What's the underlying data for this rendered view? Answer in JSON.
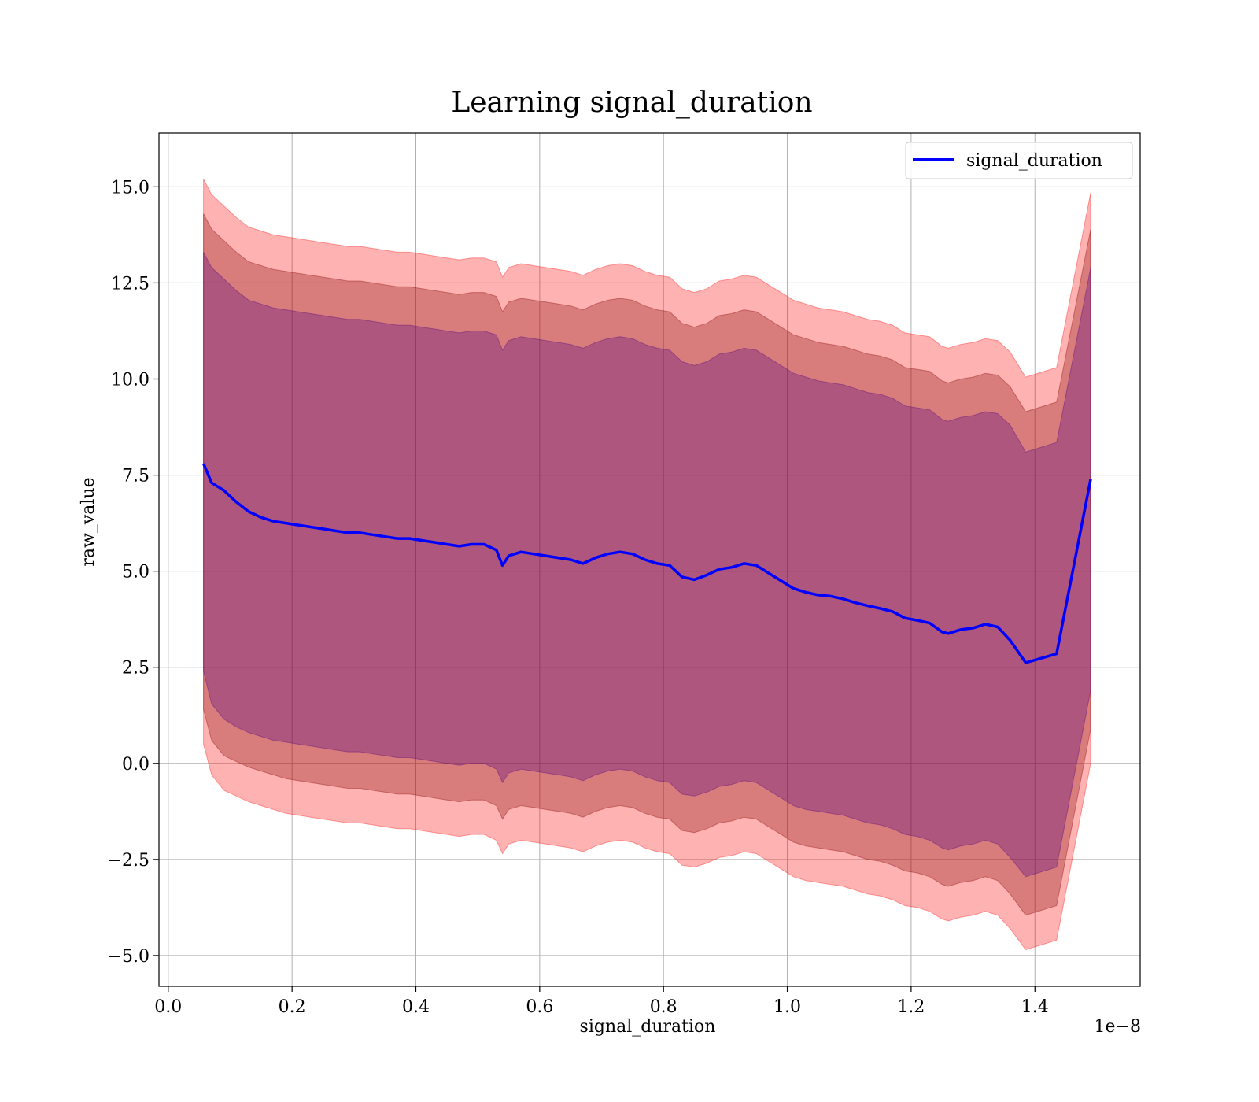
{
  "chart_data": {
    "type": "line",
    "title": "Learning signal_duration",
    "xlabel": "signal_duration",
    "ylabel": "raw_value",
    "x_offset_label": "1e−8",
    "xlim": [
      -0.015,
      1.57
    ],
    "ylim": [
      -5.8,
      16.4
    ],
    "xticks": [
      0.0,
      0.2,
      0.4,
      0.6,
      0.8,
      1.0,
      1.2,
      1.4
    ],
    "xtick_labels": [
      "0.0",
      "0.2",
      "0.4",
      "0.6",
      "0.8",
      "1.0",
      "1.2",
      "1.4"
    ],
    "yticks": [
      -5.0,
      -2.5,
      0.0,
      2.5,
      5.0,
      7.5,
      10.0,
      12.5,
      15.0
    ],
    "ytick_labels": [
      "−5.0",
      "−2.5",
      "0.0",
      "2.5",
      "5.0",
      "7.5",
      "10.0",
      "12.5",
      "15.0"
    ],
    "grid": true,
    "legend_position": "top-right",
    "series": [
      {
        "name": "signal_duration",
        "color": "#0000ff",
        "x": [
          0.057,
          0.07,
          0.09,
          0.11,
          0.13,
          0.15,
          0.17,
          0.19,
          0.21,
          0.23,
          0.25,
          0.27,
          0.29,
          0.31,
          0.33,
          0.35,
          0.37,
          0.39,
          0.41,
          0.43,
          0.45,
          0.47,
          0.49,
          0.51,
          0.53,
          0.54,
          0.55,
          0.57,
          0.59,
          0.61,
          0.63,
          0.65,
          0.67,
          0.69,
          0.71,
          0.73,
          0.75,
          0.77,
          0.79,
          0.81,
          0.83,
          0.85,
          0.87,
          0.89,
          0.91,
          0.93,
          0.95,
          0.97,
          0.99,
          1.01,
          1.03,
          1.05,
          1.07,
          1.09,
          1.11,
          1.13,
          1.15,
          1.17,
          1.19,
          1.21,
          1.23,
          1.25,
          1.26,
          1.28,
          1.3,
          1.32,
          1.34,
          1.36,
          1.385,
          1.435,
          1.49
        ],
        "values": [
          7.8,
          7.3,
          7.1,
          6.8,
          6.55,
          6.4,
          6.3,
          6.25,
          6.2,
          6.15,
          6.1,
          6.05,
          6.0,
          6.0,
          5.95,
          5.9,
          5.85,
          5.85,
          5.8,
          5.75,
          5.7,
          5.65,
          5.7,
          5.7,
          5.55,
          5.15,
          5.4,
          5.5,
          5.45,
          5.4,
          5.35,
          5.3,
          5.2,
          5.35,
          5.45,
          5.5,
          5.45,
          5.3,
          5.2,
          5.15,
          4.85,
          4.78,
          4.9,
          5.05,
          5.1,
          5.2,
          5.15,
          4.95,
          4.75,
          4.55,
          4.45,
          4.38,
          4.35,
          4.28,
          4.18,
          4.1,
          4.03,
          3.95,
          3.78,
          3.72,
          3.65,
          3.42,
          3.38,
          3.48,
          3.52,
          3.62,
          3.55,
          3.2,
          2.62,
          2.85,
          7.4
        ]
      }
    ],
    "bands": [
      {
        "color": "#ff0000",
        "opacity": 0.3,
        "lower": [
          0.5,
          -0.3,
          -0.7,
          -0.85,
          -1.0,
          -1.1,
          -1.2,
          -1.3,
          -1.35,
          -1.4,
          -1.45,
          -1.5,
          -1.55,
          -1.55,
          -1.6,
          -1.65,
          -1.7,
          -1.7,
          -1.75,
          -1.8,
          -1.85,
          -1.9,
          -1.85,
          -1.85,
          -2.0,
          -2.35,
          -2.1,
          -2.0,
          -2.05,
          -2.1,
          -2.15,
          -2.2,
          -2.3,
          -2.15,
          -2.05,
          -2.0,
          -2.05,
          -2.2,
          -2.3,
          -2.35,
          -2.65,
          -2.7,
          -2.6,
          -2.45,
          -2.4,
          -2.3,
          -2.35,
          -2.55,
          -2.75,
          -2.95,
          -3.05,
          -3.1,
          -3.15,
          -3.2,
          -3.3,
          -3.4,
          -3.45,
          -3.55,
          -3.7,
          -3.75,
          -3.85,
          -4.05,
          -4.1,
          -4.0,
          -3.95,
          -3.85,
          -3.95,
          -4.3,
          -4.85,
          -4.6,
          0.0
        ],
        "upper": [
          15.2,
          14.8,
          14.5,
          14.2,
          13.95,
          13.85,
          13.75,
          13.7,
          13.65,
          13.6,
          13.55,
          13.5,
          13.45,
          13.45,
          13.4,
          13.35,
          13.3,
          13.3,
          13.25,
          13.2,
          13.15,
          13.1,
          13.15,
          13.15,
          13.05,
          12.65,
          12.9,
          13.0,
          12.95,
          12.9,
          12.85,
          12.8,
          12.7,
          12.85,
          12.95,
          13.0,
          12.95,
          12.8,
          12.7,
          12.65,
          12.35,
          12.25,
          12.35,
          12.55,
          12.6,
          12.7,
          12.65,
          12.45,
          12.25,
          12.05,
          11.95,
          11.85,
          11.8,
          11.75,
          11.65,
          11.55,
          11.5,
          11.4,
          11.2,
          11.15,
          11.1,
          10.85,
          10.8,
          10.9,
          10.95,
          11.05,
          11.0,
          10.7,
          10.05,
          10.3,
          14.85
        ]
      },
      {
        "color": "#800000",
        "opacity": 0.3,
        "lower": [
          1.4,
          0.6,
          0.2,
          0.05,
          -0.1,
          -0.2,
          -0.3,
          -0.4,
          -0.45,
          -0.5,
          -0.55,
          -0.6,
          -0.65,
          -0.65,
          -0.7,
          -0.75,
          -0.8,
          -0.8,
          -0.85,
          -0.9,
          -0.95,
          -1.0,
          -0.95,
          -0.95,
          -1.1,
          -1.45,
          -1.2,
          -1.1,
          -1.15,
          -1.2,
          -1.25,
          -1.3,
          -1.4,
          -1.25,
          -1.15,
          -1.1,
          -1.15,
          -1.3,
          -1.4,
          -1.45,
          -1.75,
          -1.8,
          -1.7,
          -1.55,
          -1.5,
          -1.4,
          -1.45,
          -1.65,
          -1.85,
          -2.05,
          -2.15,
          -2.2,
          -2.25,
          -2.3,
          -2.4,
          -2.5,
          -2.55,
          -2.65,
          -2.8,
          -2.85,
          -2.95,
          -3.15,
          -3.2,
          -3.1,
          -3.05,
          -2.95,
          -3.05,
          -3.4,
          -3.95,
          -3.7,
          0.9
        ],
        "upper": [
          14.3,
          13.9,
          13.6,
          13.3,
          13.05,
          12.95,
          12.85,
          12.8,
          12.75,
          12.7,
          12.65,
          12.6,
          12.55,
          12.55,
          12.5,
          12.45,
          12.4,
          12.4,
          12.35,
          12.3,
          12.25,
          12.2,
          12.25,
          12.25,
          12.15,
          11.75,
          12.0,
          12.1,
          12.05,
          12.0,
          11.95,
          11.9,
          11.8,
          11.95,
          12.05,
          12.1,
          12.05,
          11.9,
          11.8,
          11.75,
          11.45,
          11.35,
          11.45,
          11.65,
          11.7,
          11.8,
          11.75,
          11.55,
          11.35,
          11.15,
          11.05,
          10.95,
          10.9,
          10.85,
          10.75,
          10.65,
          10.6,
          10.5,
          10.3,
          10.25,
          10.2,
          9.95,
          9.9,
          10.0,
          10.05,
          10.15,
          10.1,
          9.8,
          9.15,
          9.4,
          13.9
        ]
      },
      {
        "color": "#4b0082",
        "opacity": 0.3,
        "lower": [
          2.4,
          1.55,
          1.15,
          0.95,
          0.8,
          0.7,
          0.6,
          0.55,
          0.5,
          0.45,
          0.4,
          0.35,
          0.3,
          0.3,
          0.25,
          0.2,
          0.15,
          0.15,
          0.1,
          0.05,
          0.0,
          -0.05,
          0.0,
          0.0,
          -0.15,
          -0.5,
          -0.25,
          -0.15,
          -0.2,
          -0.25,
          -0.3,
          -0.35,
          -0.45,
          -0.3,
          -0.2,
          -0.15,
          -0.2,
          -0.35,
          -0.45,
          -0.5,
          -0.8,
          -0.85,
          -0.75,
          -0.6,
          -0.55,
          -0.45,
          -0.5,
          -0.7,
          -0.9,
          -1.1,
          -1.2,
          -1.25,
          -1.3,
          -1.35,
          -1.45,
          -1.55,
          -1.6,
          -1.7,
          -1.85,
          -1.9,
          -2.0,
          -2.2,
          -2.25,
          -2.15,
          -2.1,
          -2.0,
          -2.1,
          -2.45,
          -2.95,
          -2.7,
          1.9
        ],
        "upper": [
          13.3,
          12.9,
          12.6,
          12.3,
          12.05,
          11.95,
          11.85,
          11.8,
          11.75,
          11.7,
          11.65,
          11.6,
          11.55,
          11.55,
          11.5,
          11.45,
          11.4,
          11.4,
          11.35,
          11.3,
          11.25,
          11.2,
          11.25,
          11.25,
          11.15,
          10.75,
          11.0,
          11.1,
          11.05,
          11.0,
          10.95,
          10.9,
          10.8,
          10.95,
          11.05,
          11.1,
          11.05,
          10.9,
          10.8,
          10.75,
          10.45,
          10.35,
          10.45,
          10.65,
          10.7,
          10.8,
          10.75,
          10.55,
          10.35,
          10.15,
          10.05,
          9.95,
          9.9,
          9.85,
          9.75,
          9.65,
          9.6,
          9.5,
          9.3,
          9.25,
          9.2,
          8.95,
          8.9,
          9.0,
          9.05,
          9.15,
          9.1,
          8.8,
          8.1,
          8.35,
          12.9
        ]
      }
    ]
  }
}
